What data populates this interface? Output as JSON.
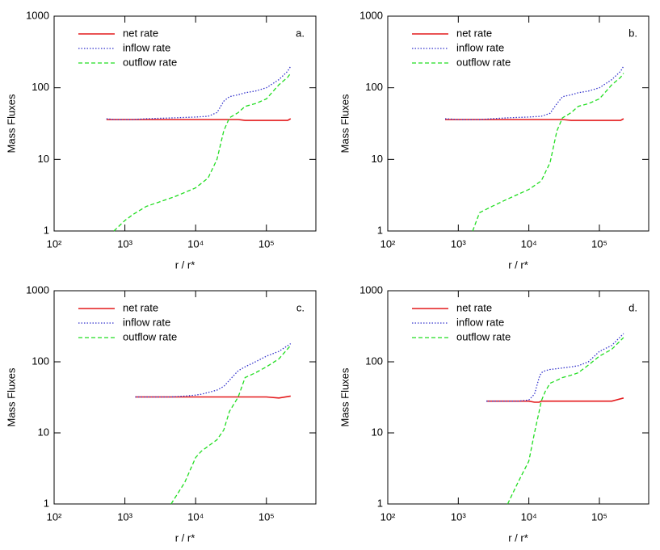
{
  "chart_data": [
    {
      "type": "line",
      "panel_label": "a.",
      "ylabel": "Mass Fluxes",
      "xlabel": "r / r*",
      "xscale": "log",
      "yscale": "log",
      "legend": "upper left",
      "xlim": [
        100,
        500000
      ],
      "ylim": [
        1,
        1000
      ],
      "xticks": [
        {
          "value": 100,
          "label": "10²"
        },
        {
          "value": 1000,
          "label": "10³"
        },
        {
          "value": 10000,
          "label": "10⁴"
        },
        {
          "value": 100000,
          "label": "10⁵"
        }
      ],
      "yticks": [
        1,
        10,
        100,
        1000
      ],
      "x": [
        550,
        700,
        1000,
        1300,
        2000,
        5000,
        10000,
        15000,
        20000,
        25000,
        30000,
        40000,
        50000,
        70000,
        100000,
        150000,
        200000,
        220000
      ],
      "series": [
        {
          "name": "net rate",
          "color": "#e41a1c",
          "style": "solid",
          "values": [
            36,
            36,
            36,
            36,
            36,
            36,
            36,
            36,
            36,
            36,
            36,
            36,
            35,
            35,
            35,
            35,
            35,
            37
          ]
        },
        {
          "name": "inflow rate",
          "color": "#3333cc",
          "style": "dotted",
          "values": [
            37,
            36,
            36,
            36,
            37,
            38,
            39,
            40,
            45,
            65,
            75,
            80,
            85,
            90,
            100,
            130,
            170,
            200
          ]
        },
        {
          "name": "outflow rate",
          "color": "#22dd22",
          "style": "dashed",
          "values": [
            null,
            1,
            1.4,
            1.7,
            2.2,
            3,
            4,
            5.5,
            10,
            25,
            38,
            45,
            55,
            60,
            70,
            110,
            140,
            160
          ]
        }
      ]
    },
    {
      "type": "line",
      "panel_label": "b.",
      "ylabel": "Mass Fluxes",
      "xlabel": "r / r*",
      "xscale": "log",
      "yscale": "log",
      "legend": "upper left",
      "xlim": [
        100,
        500000
      ],
      "ylim": [
        1,
        1000
      ],
      "xticks": [
        {
          "value": 100,
          "label": "10²"
        },
        {
          "value": 1000,
          "label": "10³"
        },
        {
          "value": 10000,
          "label": "10⁴"
        },
        {
          "value": 100000,
          "label": "10⁵"
        }
      ],
      "yticks": [
        1,
        10,
        100,
        1000
      ],
      "x": [
        650,
        1000,
        1600,
        2000,
        3000,
        5000,
        10000,
        15000,
        20000,
        25000,
        30000,
        40000,
        50000,
        70000,
        100000,
        150000,
        200000,
        220000
      ],
      "series": [
        {
          "name": "net rate",
          "color": "#e41a1c",
          "style": "solid",
          "values": [
            36,
            36,
            36,
            36,
            36,
            36,
            36,
            36,
            36,
            36,
            36,
            35,
            35,
            35,
            35,
            35,
            35,
            37
          ]
        },
        {
          "name": "inflow rate",
          "color": "#3333cc",
          "style": "dotted",
          "values": [
            37,
            36,
            36,
            36,
            37,
            38,
            39,
            40,
            44,
            60,
            75,
            80,
            85,
            90,
            100,
            130,
            170,
            200
          ]
        },
        {
          "name": "outflow rate",
          "color": "#22dd22",
          "style": "dashed",
          "values": [
            null,
            null,
            1,
            1.8,
            2.2,
            2.8,
            3.8,
            5,
            9,
            25,
            38,
            45,
            55,
            60,
            70,
            110,
            140,
            160
          ]
        }
      ]
    },
    {
      "type": "line",
      "panel_label": "c.",
      "ylabel": "Mass Fluxes",
      "xlabel": "r / r*",
      "xscale": "log",
      "yscale": "log",
      "legend": "upper left",
      "xlim": [
        100,
        500000
      ],
      "ylim": [
        1,
        1000
      ],
      "xticks": [
        {
          "value": 100,
          "label": "10²"
        },
        {
          "value": 1000,
          "label": "10³"
        },
        {
          "value": 10000,
          "label": "10⁴"
        },
        {
          "value": 100000,
          "label": "10⁵"
        }
      ],
      "yticks": [
        1,
        10,
        100,
        1000
      ],
      "x": [
        1400,
        2000,
        3000,
        4500,
        7000,
        10000,
        12000,
        15000,
        20000,
        25000,
        30000,
        40000,
        50000,
        70000,
        100000,
        150000,
        220000
      ],
      "series": [
        {
          "name": "net rate",
          "color": "#e41a1c",
          "style": "solid",
          "values": [
            32,
            32,
            32,
            32,
            32,
            32,
            32,
            32,
            32,
            32,
            32,
            32,
            32,
            32,
            32,
            31,
            33
          ]
        },
        {
          "name": "inflow rate",
          "color": "#3333cc",
          "style": "dotted",
          "values": [
            32,
            32,
            32,
            32,
            33,
            34,
            35,
            37,
            40,
            45,
            55,
            75,
            85,
            100,
            120,
            140,
            180
          ]
        },
        {
          "name": "outflow rate",
          "color": "#22dd22",
          "style": "dashed",
          "values": [
            null,
            null,
            null,
            1,
            2,
            4.5,
            5.5,
            6.5,
            8,
            11,
            20,
            32,
            60,
            70,
            85,
            110,
            170
          ]
        }
      ]
    },
    {
      "type": "line",
      "panel_label": "d.",
      "ylabel": "Mass Fluxes",
      "xlabel": "r / r*",
      "xscale": "log",
      "yscale": "log",
      "legend": "upper left",
      "xlim": [
        100,
        500000
      ],
      "ylim": [
        1,
        1000
      ],
      "xticks": [
        {
          "value": 100,
          "label": "10²"
        },
        {
          "value": 1000,
          "label": "10³"
        },
        {
          "value": 10000,
          "label": "10⁴"
        },
        {
          "value": 100000,
          "label": "10⁵"
        }
      ],
      "yticks": [
        1,
        10,
        100,
        1000
      ],
      "x": [
        2500,
        5000,
        7000,
        10000,
        12000,
        14000,
        15000,
        17000,
        20000,
        25000,
        30000,
        40000,
        50000,
        70000,
        100000,
        150000,
        220000
      ],
      "series": [
        {
          "name": "net rate",
          "color": "#e41a1c",
          "style": "solid",
          "values": [
            28,
            28,
            28,
            28,
            27,
            27,
            28,
            28,
            28,
            28,
            28,
            28,
            28,
            28,
            28,
            28,
            31
          ]
        },
        {
          "name": "inflow rate",
          "color": "#3333cc",
          "style": "dotted",
          "values": [
            28,
            28,
            28,
            29,
            35,
            60,
            70,
            75,
            78,
            80,
            82,
            85,
            88,
            100,
            140,
            170,
            250
          ]
        },
        {
          "name": "outflow rate",
          "color": "#22dd22",
          "style": "dashed",
          "values": [
            null,
            1,
            2,
            4,
            10,
            20,
            28,
            38,
            50,
            55,
            60,
            65,
            70,
            90,
            120,
            150,
            220
          ]
        }
      ]
    }
  ]
}
